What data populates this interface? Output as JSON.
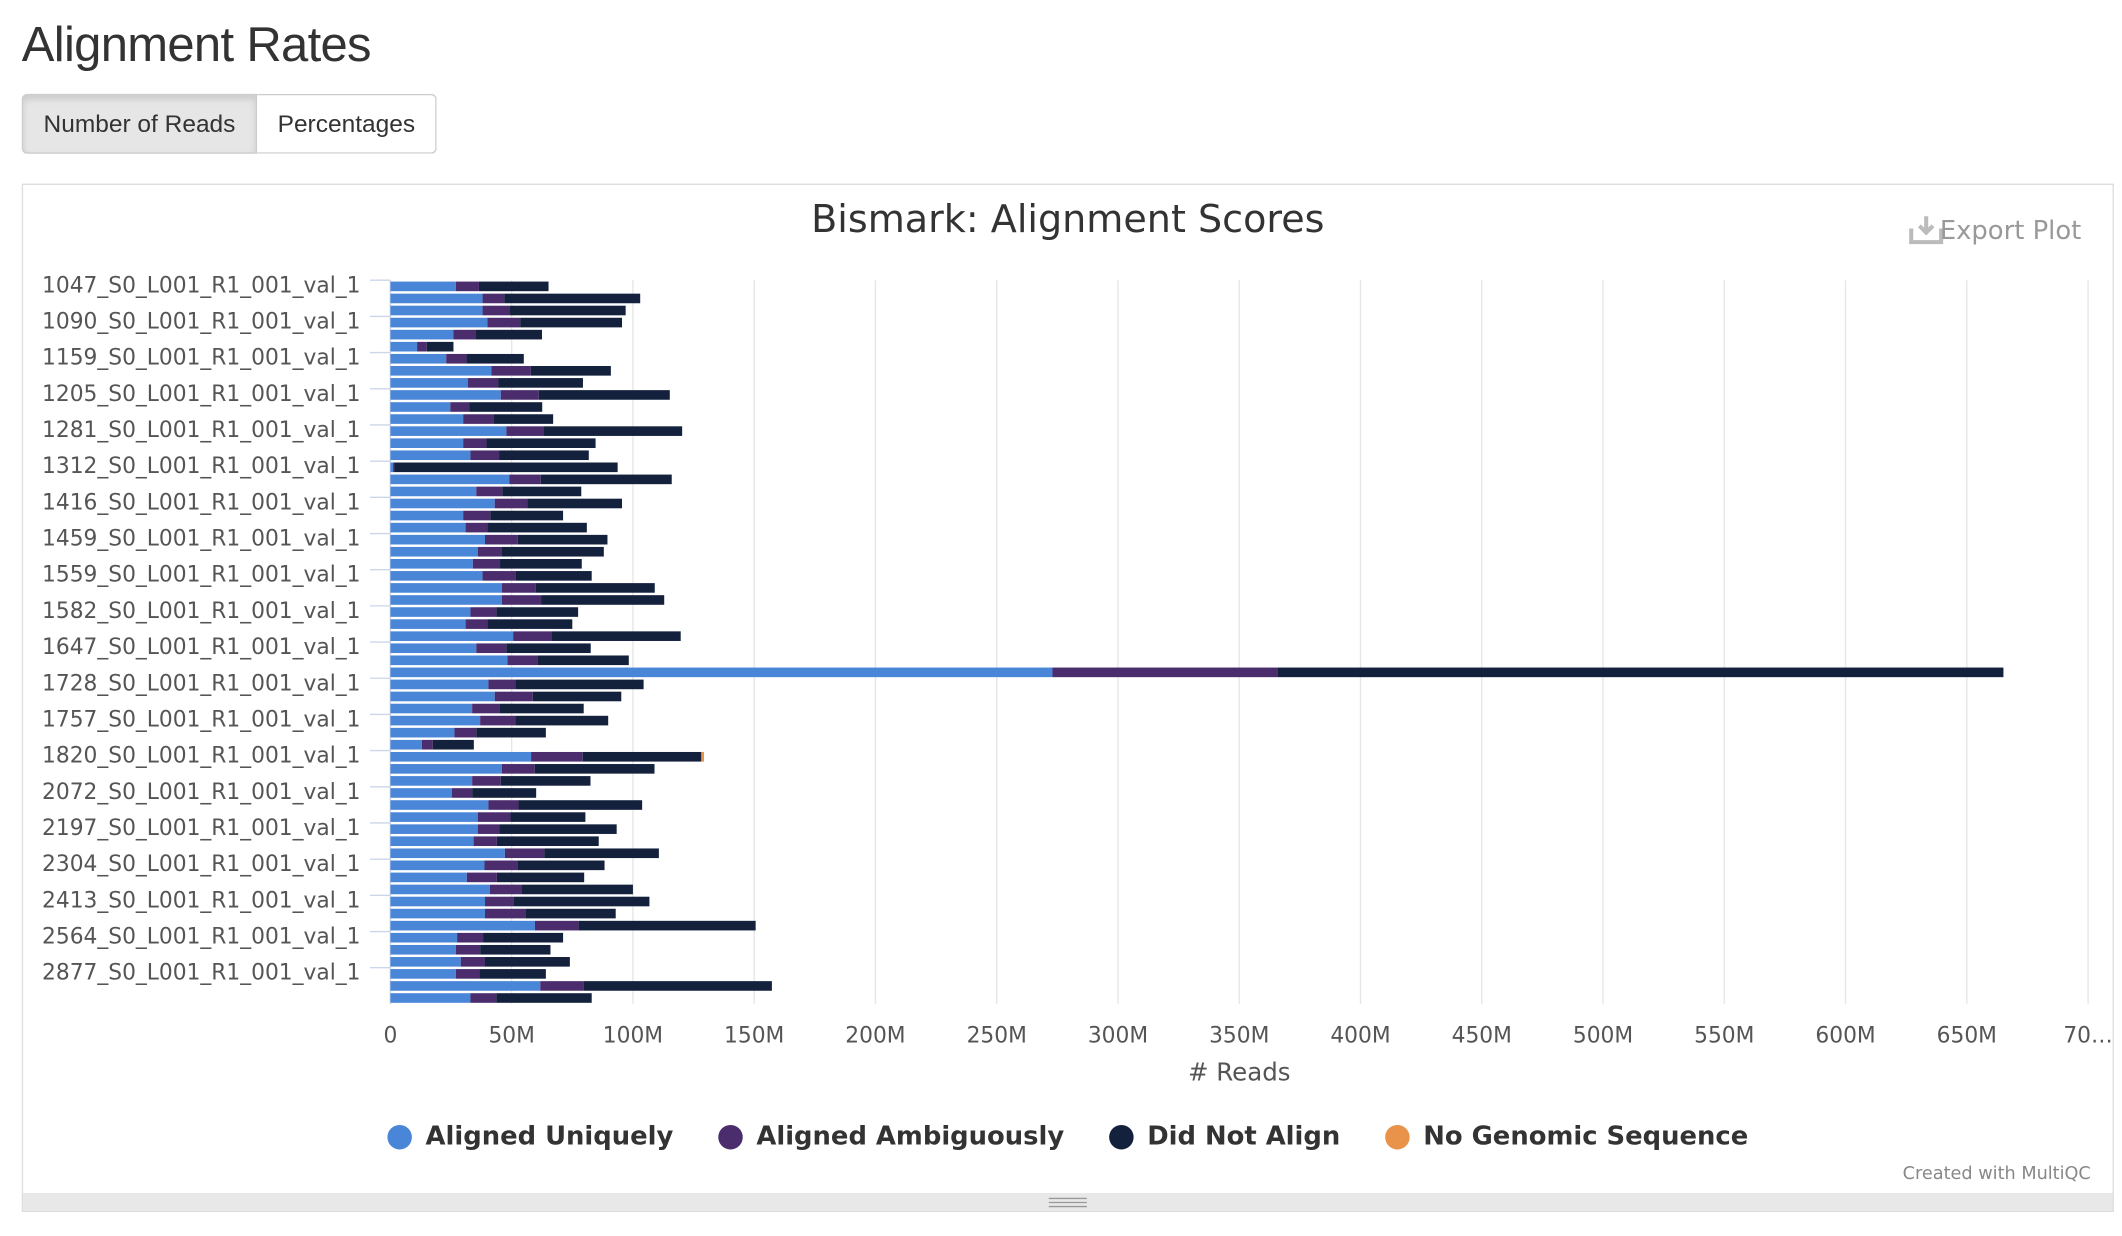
{
  "header": {
    "title": "Alignment Rates"
  },
  "buttons": [
    "Number of Reads",
    "Percentages"
  ],
  "export": "Export Plot",
  "credit": "Created with MultiQC",
  "chart_data": {
    "type": "stacked-hbar",
    "title": "Bismark: Alignment Scores",
    "xlabel": "# Reads",
    "categories": [
      "1047_S0_L001_R1_001_val_1",
      null,
      null,
      "1090_S0_L001_R1_001_val_1",
      null,
      null,
      "1159_S0_L001_R1_001_val_1",
      null,
      null,
      "1205_S0_L001_R1_001_val_1",
      null,
      null,
      "1281_S0_L001_R1_001_val_1",
      null,
      null,
      "1312_S0_L001_R1_001_val_1",
      null,
      null,
      "1416_S0_L001_R1_001_val_1",
      null,
      null,
      "1459_S0_L001_R1_001_val_1",
      null,
      null,
      "1559_S0_L001_R1_001_val_1",
      null,
      null,
      "1582_S0_L001_R1_001_val_1",
      null,
      null,
      "1647_S0_L001_R1_001_val_1",
      null,
      null,
      "1728_S0_L001_R1_001_val_1",
      null,
      null,
      "1757_S0_L001_R1_001_val_1",
      null,
      null,
      "1820_S0_L001_R1_001_val_1",
      null,
      null,
      "2072_S0_L001_R1_001_val_1",
      null,
      null,
      "2197_S0_L001_R1_001_val_1",
      null,
      null,
      "2304_S0_L001_R1_001_val_1",
      null,
      null,
      "2413_S0_L001_R1_001_val_1",
      null,
      null,
      "2564_S0_L001_R1_001_val_1",
      null,
      null,
      "2877_S0_L001_R1_001_val_1",
      null,
      null
    ],
    "series": [
      {
        "name": "Aligned Uniquely",
        "color": "#4a86d8",
        "values": [
          27000000,
          38000000,
          38000000,
          40000000,
          26000000,
          11000000,
          23000000,
          41600000,
          32000000,
          45500000,
          24700000,
          30000000,
          47800000,
          30000000,
          33000000,
          1100000,
          49000000,
          35400000,
          43000000,
          30000000,
          31000000,
          39000000,
          36000000,
          34000000,
          38000000,
          46000000,
          46000000,
          33000000,
          31000000,
          50600000,
          35400000,
          48300000,
          273000000,
          40400000,
          43000000,
          33700000,
          37000000,
          26400000,
          13000000,
          58000000,
          46000000,
          33700000,
          25300000,
          40400000,
          36000000,
          36000000,
          34300000,
          47200000,
          38800000,
          31500000,
          41000000,
          39000000,
          39000000,
          59600000,
          27500000,
          27000000,
          29000000,
          27000000,
          61800000,
          33000000
        ]
      },
      {
        "name": "Aligned Ambiguously",
        "color": "#4b2d6e",
        "values": [
          9500000,
          9000000,
          11000000,
          13500000,
          9000000,
          4000000,
          8400000,
          16300000,
          12400000,
          15700000,
          7900000,
          12400000,
          15200000,
          9600000,
          11800000,
          600000,
          13000000,
          10700000,
          13500000,
          11200000,
          9000000,
          13500000,
          10000000,
          11200000,
          13500000,
          14000000,
          16300000,
          10700000,
          9000000,
          15700000,
          12400000,
          12400000,
          92700000,
          11200000,
          15700000,
          11200000,
          14600000,
          9000000,
          4500000,
          21300000,
          13500000,
          11800000,
          8400000,
          12400000,
          13500000,
          9000000,
          9600000,
          16300000,
          13500000,
          12400000,
          13000000,
          11800000,
          16900000,
          18000000,
          10700000,
          10000000,
          10000000,
          9600000,
          18000000,
          10700000
        ]
      },
      {
        "name": "Did Not Align",
        "color": "#14213d",
        "values": [
          28700000,
          56000000,
          48000000,
          42000000,
          27500000,
          11000000,
          23600000,
          33000000,
          35000000,
          54000000,
          30000000,
          24700000,
          57300000,
          45000000,
          37000000,
          92000000,
          54000000,
          32600000,
          39000000,
          30000000,
          41000000,
          37000000,
          42000000,
          33700000,
          31500000,
          49000000,
          50600000,
          33700000,
          35000000,
          53400000,
          34800000,
          37600000,
          299400000,
          52800000,
          36500000,
          34800000,
          38200000,
          28700000,
          16900000,
          48900000,
          49400000,
          37000000,
          26400000,
          51000000,
          30900000,
          48300000,
          42000000,
          47200000,
          36000000,
          36000000,
          46000000,
          56000000,
          37000000,
          73000000,
          33000000,
          29000000,
          35000000,
          27500000,
          77500000,
          39300000
        ]
      },
      {
        "name": "No Genomic Sequence",
        "color": "#e8924a",
        "values": [
          0,
          0,
          0,
          0,
          0,
          0,
          0,
          0,
          0,
          0,
          0,
          0,
          0,
          0,
          0,
          0,
          0,
          0,
          0,
          0,
          0,
          0,
          0,
          0,
          0,
          0,
          0,
          0,
          0,
          0,
          0,
          0,
          0,
          0,
          0,
          0,
          0,
          0,
          0,
          1100000,
          0,
          0,
          0,
          0,
          0,
          0,
          0,
          0,
          0,
          0,
          0,
          0,
          0,
          0,
          0,
          0,
          0,
          0,
          0,
          0
        ]
      }
    ],
    "xlim": [
      0,
      700000000
    ],
    "xticks": [
      0,
      {
        "value": 50000000,
        "label": "50M"
      },
      {
        "value": 100000000,
        "label": "100M"
      },
      {
        "value": 150000000,
        "label": "150M"
      },
      {
        "value": 200000000,
        "label": "200M"
      },
      {
        "value": 250000000,
        "label": "250M"
      },
      {
        "value": 300000000,
        "label": "300M"
      },
      {
        "value": 350000000,
        "label": "350M"
      },
      {
        "value": 400000000,
        "label": "400M"
      },
      {
        "value": 450000000,
        "label": "450M"
      },
      {
        "value": 500000000,
        "label": "500M"
      },
      {
        "value": 550000000,
        "label": "550M"
      },
      {
        "value": 600000000,
        "label": "600M"
      },
      {
        "value": 650000000,
        "label": "650M"
      },
      {
        "value": 700000000,
        "label": "70…"
      }
    ],
    "grid": true
  }
}
